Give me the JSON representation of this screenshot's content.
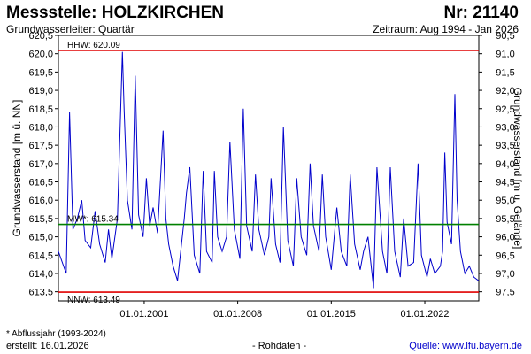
{
  "header": {
    "title": "Messstelle: HOLZKIRCHEN",
    "number": "Nr: 21140",
    "aquifer": "Grundwasserleiter: Quartär",
    "period": "Zeitraum: Aug 1994 - Jan 2026"
  },
  "footer": {
    "footnote": "* Abflussjahr (1993-2024)",
    "created": "erstellt:  16.01.2026",
    "rawdata": "- Rohdaten -",
    "source": "Quelle: www.lfu.bayern.de"
  },
  "colors": {
    "series": "#0000cc",
    "hhw": "#e00000",
    "mw": "#008000",
    "nnw": "#e00000"
  },
  "chart_data": {
    "type": "line",
    "ylabel_left": "Grundwasserstand [m ü. NN]",
    "ylabel_right": "Grundwasserstand [m u. Gelände]",
    "ylim": [
      613.25,
      620.5
    ],
    "xlim": [
      "1994-08-01",
      "2026-01-15"
    ],
    "yticks_left": [
      "620,5",
      "620,0",
      "619,5",
      "619,0",
      "618,5",
      "618,0",
      "617,5",
      "617,0",
      "616,5",
      "616,0",
      "615,5",
      "615,0",
      "614,5",
      "614,0",
      "613,5"
    ],
    "yticks_right": [
      "90,5",
      "91,0",
      "91,5",
      "92,0",
      "92,5",
      "93,0",
      "93,5",
      "94,0",
      "94,5",
      "95,0",
      "95,5",
      "96,0",
      "96,5",
      "97,0",
      "97,5"
    ],
    "xticks": [
      "01.01.2001",
      "01.01.2008",
      "01.01.2015",
      "01.01.2022"
    ],
    "reference_lines": [
      {
        "label": "HHW: 620.09",
        "value": 620.09,
        "color": "#e00000"
      },
      {
        "label": "MW*: 615.34",
        "value": 615.34,
        "color": "#008000"
      },
      {
        "label": "NNW: 613.49",
        "value": 613.49,
        "color": "#e00000"
      }
    ],
    "series": [
      {
        "x": [
          "1994-08-01",
          "1995-03-01",
          "1995-06-01",
          "1995-09-01",
          "1996-01-01",
          "1996-05-01",
          "1996-08-01",
          "1997-01-01",
          "1997-05-01",
          "1997-09-01",
          "1998-02-01",
          "1998-05-01",
          "1998-08-01",
          "1999-01-01",
          "1999-05-15",
          "1999-07-01",
          "1999-10-01",
          "2000-02-01",
          "2000-05-01",
          "2000-08-01",
          "2000-12-01",
          "2001-03-01",
          "2001-06-01",
          "2001-09-01",
          "2002-01-01",
          "2002-06-01",
          "2002-08-15",
          "2002-11-01",
          "2003-03-01",
          "2003-07-01",
          "2004-01-01",
          "2004-03-01",
          "2004-06-01",
          "2004-10-01",
          "2005-03-01",
          "2005-06-01",
          "2005-09-01",
          "2006-02-01",
          "2006-04-01",
          "2006-07-01",
          "2006-11-01",
          "2007-03-01",
          "2007-06-01",
          "2007-10-01",
          "2008-03-01",
          "2008-06-01",
          "2008-09-01",
          "2009-02-01",
          "2009-05-01",
          "2009-08-01",
          "2010-01-01",
          "2010-05-01",
          "2010-07-01",
          "2010-11-01",
          "2011-03-01",
          "2011-06-01",
          "2011-10-01",
          "2012-03-01",
          "2012-06-01",
          "2012-10-01",
          "2013-03-01",
          "2013-06-01",
          "2013-09-01",
          "2014-02-01",
          "2014-05-01",
          "2014-08-01",
          "2015-01-01",
          "2015-06-01",
          "2015-10-01",
          "2016-03-01",
          "2016-06-01",
          "2016-10-01",
          "2017-03-01",
          "2017-06-01",
          "2017-10-01",
          "2018-03-01",
          "2018-06-01",
          "2018-11-01",
          "2019-03-01",
          "2019-06-01",
          "2019-10-01",
          "2020-03-01",
          "2020-06-01",
          "2020-10-01",
          "2021-03-01",
          "2021-07-01",
          "2021-10-01",
          "2022-03-01",
          "2022-06-01",
          "2022-10-01",
          "2023-03-01",
          "2023-05-01",
          "2023-07-01",
          "2023-09-01",
          "2024-01-01",
          "2024-04-01",
          "2024-06-01",
          "2024-09-01",
          "2025-01-01",
          "2025-05-01",
          "2025-09-01",
          "2026-01-10"
        ],
        "y": [
          614.6,
          614.0,
          618.4,
          615.2,
          615.5,
          616.0,
          614.9,
          614.7,
          615.7,
          614.8,
          614.3,
          615.2,
          614.4,
          615.5,
          620.05,
          618.5,
          616.0,
          615.2,
          619.4,
          615.6,
          615.0,
          616.6,
          615.3,
          615.8,
          615.1,
          617.9,
          615.5,
          614.8,
          614.2,
          613.8,
          615.5,
          616.2,
          616.9,
          614.5,
          614.0,
          616.8,
          614.6,
          614.3,
          616.8,
          615.0,
          614.6,
          615.0,
          617.6,
          615.2,
          614.4,
          618.5,
          615.3,
          614.6,
          616.7,
          615.2,
          614.5,
          615.0,
          616.6,
          614.8,
          614.3,
          618.0,
          614.9,
          614.2,
          616.6,
          615.0,
          614.5,
          617.0,
          615.3,
          614.6,
          616.7,
          615.0,
          614.1,
          615.8,
          614.6,
          614.2,
          616.7,
          614.8,
          614.1,
          614.6,
          615.0,
          613.6,
          616.9,
          614.6,
          614.0,
          616.9,
          614.6,
          613.9,
          615.5,
          614.2,
          614.3,
          617.0,
          614.5,
          613.9,
          614.4,
          614.0,
          614.2,
          614.6,
          617.3,
          615.4,
          614.8,
          618.9,
          616.0,
          614.6,
          614.0,
          614.2,
          613.9,
          613.8
        ]
      }
    ]
  }
}
